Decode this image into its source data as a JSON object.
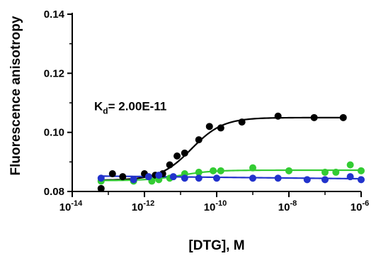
{
  "chart_data": {
    "type": "scatter",
    "title": "",
    "xlabel": "[DTG], M",
    "ylabel": "Fluorescence anisotropy",
    "x_scale": "log",
    "xlim": [
      1e-14,
      1e-06
    ],
    "ylim": [
      0.08,
      0.14
    ],
    "x_ticks": [
      {
        "value": 1e-14,
        "base": "10",
        "exp": "-14"
      },
      {
        "value": 1e-12,
        "base": "10",
        "exp": "-12"
      },
      {
        "value": 1e-10,
        "base": "10",
        "exp": "-10"
      },
      {
        "value": 1e-08,
        "base": "10",
        "exp": "-8"
      },
      {
        "value": 1e-06,
        "base": "10",
        "exp": "-6"
      }
    ],
    "y_ticks": [
      {
        "value": 0.08,
        "label": "0.08"
      },
      {
        "value": 0.1,
        "label": "0.10"
      },
      {
        "value": 0.12,
        "label": "0.12"
      },
      {
        "value": 0.14,
        "label": "0.14"
      }
    ],
    "grid": false,
    "annotation": {
      "prefix": "K",
      "sub": "d",
      "suffix": "= 2.00E-11",
      "x": 1.5e-14,
      "y": 0.1075
    },
    "series": [
      {
        "color": "#000000",
        "points": [
          {
            "x": 6.3e-14,
            "y": 0.081
          },
          {
            "x": 1.3e-13,
            "y": 0.086
          },
          {
            "x": 2.5e-13,
            "y": 0.085
          },
          {
            "x": 5e-13,
            "y": 0.084
          },
          {
            "x": 1e-12,
            "y": 0.086
          },
          {
            "x": 2e-12,
            "y": 0.0855
          },
          {
            "x": 3.2e-12,
            "y": 0.086
          },
          {
            "x": 5e-12,
            "y": 0.089
          },
          {
            "x": 8e-12,
            "y": 0.092
          },
          {
            "x": 1.3e-11,
            "y": 0.093
          },
          {
            "x": 3.2e-11,
            "y": 0.0975
          },
          {
            "x": 6.3e-11,
            "y": 0.102
          },
          {
            "x": 1.3e-10,
            "y": 0.1015
          },
          {
            "x": 5e-10,
            "y": 0.1035
          },
          {
            "x": 5e-09,
            "y": 0.1055
          },
          {
            "x": 5e-08,
            "y": 0.105
          },
          {
            "x": 3.2e-07,
            "y": 0.105
          }
        ],
        "fit": {
          "kind": "sigmoid",
          "bottom": 0.0838,
          "top": 0.105,
          "kd": 2e-11,
          "x_from": 6.3e-14,
          "x_to": 3.2e-07
        }
      },
      {
        "color": "#33cc33",
        "points": [
          {
            "x": 6.3e-14,
            "y": 0.0835
          },
          {
            "x": 5e-13,
            "y": 0.0835
          },
          {
            "x": 1.6e-12,
            "y": 0.0835
          },
          {
            "x": 2.5e-12,
            "y": 0.084
          },
          {
            "x": 5e-12,
            "y": 0.0845
          },
          {
            "x": 1.3e-11,
            "y": 0.086
          },
          {
            "x": 3.2e-11,
            "y": 0.0865
          },
          {
            "x": 8e-11,
            "y": 0.087
          },
          {
            "x": 1.3e-10,
            "y": 0.087
          },
          {
            "x": 1e-09,
            "y": 0.088
          },
          {
            "x": 1e-08,
            "y": 0.087
          },
          {
            "x": 1e-07,
            "y": 0.0865
          },
          {
            "x": 2e-07,
            "y": 0.0865
          },
          {
            "x": 5e-07,
            "y": 0.089
          },
          {
            "x": 1e-06,
            "y": 0.087
          }
        ],
        "fit": {
          "kind": "sigmoid",
          "bottom": 0.0837,
          "top": 0.0872,
          "kd": 1e-11,
          "x_from": 6.3e-14,
          "x_to": 1e-06
        }
      },
      {
        "color": "#2233cc",
        "points": [
          {
            "x": 6.3e-14,
            "y": 0.0845
          },
          {
            "x": 5e-13,
            "y": 0.084
          },
          {
            "x": 1.3e-12,
            "y": 0.085
          },
          {
            "x": 2.5e-12,
            "y": 0.0855
          },
          {
            "x": 6.3e-12,
            "y": 0.085
          },
          {
            "x": 1.3e-11,
            "y": 0.0845
          },
          {
            "x": 3.2e-11,
            "y": 0.0845
          },
          {
            "x": 1e-10,
            "y": 0.0845
          },
          {
            "x": 1e-09,
            "y": 0.0845
          },
          {
            "x": 5e-09,
            "y": 0.0845
          },
          {
            "x": 3.2e-08,
            "y": 0.084
          },
          {
            "x": 1e-07,
            "y": 0.084
          },
          {
            "x": 5e-07,
            "y": 0.085
          },
          {
            "x": 1e-06,
            "y": 0.084
          }
        ],
        "fit": {
          "kind": "linear",
          "y_start": 0.0852,
          "y_end": 0.0843,
          "x_from": 6.3e-14,
          "x_to": 1e-06
        }
      }
    ]
  }
}
